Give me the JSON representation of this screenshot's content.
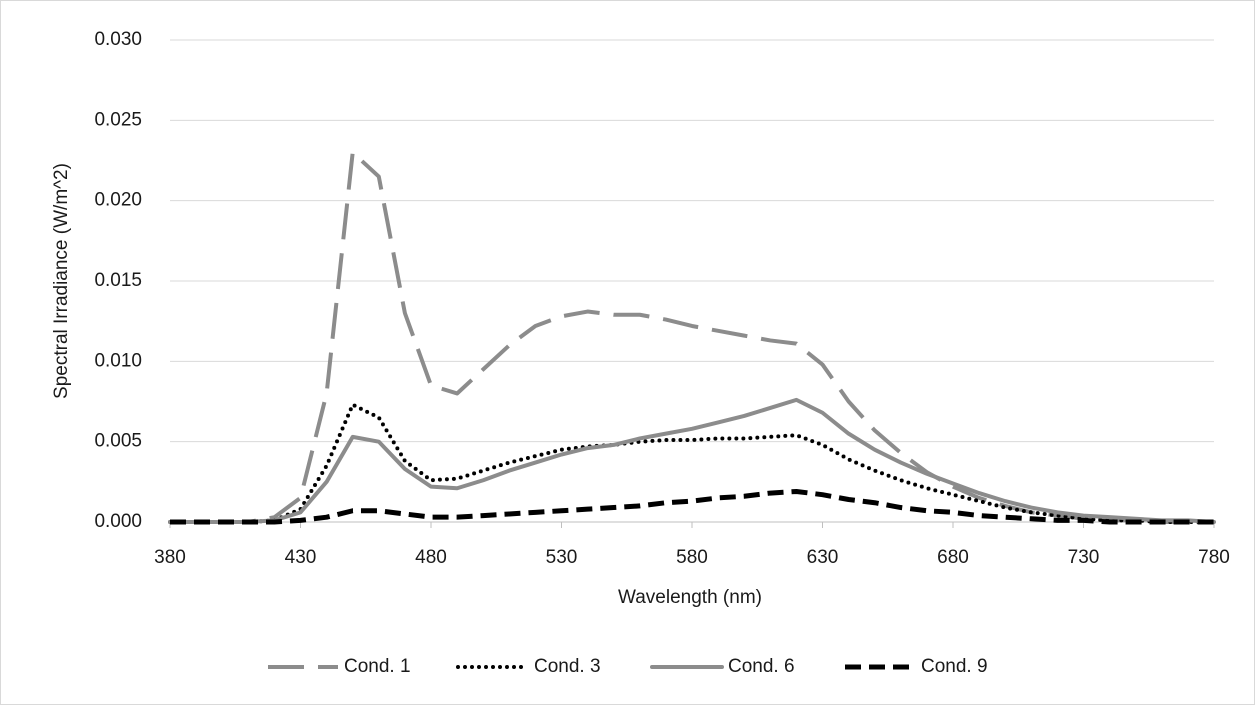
{
  "chart_data": {
    "type": "line",
    "x_label": "Wavelength (nm)",
    "y_label": "Spectral Irradiance (W/m^2)",
    "x": [
      380,
      390,
      400,
      410,
      420,
      430,
      440,
      450,
      460,
      470,
      480,
      490,
      500,
      510,
      520,
      530,
      540,
      550,
      560,
      570,
      580,
      590,
      600,
      610,
      620,
      630,
      640,
      650,
      660,
      670,
      680,
      690,
      700,
      710,
      720,
      730,
      740,
      750,
      760,
      770,
      780
    ],
    "series": [
      {
        "name": "Cond. 1",
        "color": "#8c8c8c",
        "style": "long-dash",
        "values": [
          0,
          0,
          0,
          0,
          0.0003,
          0.0015,
          0.008,
          0.023,
          0.0215,
          0.013,
          0.0085,
          0.008,
          0.0095,
          0.011,
          0.0122,
          0.0128,
          0.0131,
          0.0129,
          0.0129,
          0.0126,
          0.0122,
          0.0119,
          0.0116,
          0.0113,
          0.0111,
          0.0098,
          0.0075,
          0.0057,
          0.0043,
          0.0031,
          0.0022,
          0.0015,
          0.001,
          0.0006,
          0.0004,
          0.0002,
          0.0001,
          0.0001,
          0,
          0,
          0
        ]
      },
      {
        "name": "Cond. 3",
        "color": "#000000",
        "style": "dotted",
        "values": [
          0,
          0,
          0,
          0,
          0.0001,
          0.0008,
          0.0035,
          0.0073,
          0.0065,
          0.0038,
          0.0026,
          0.0027,
          0.0032,
          0.0037,
          0.0041,
          0.0045,
          0.0047,
          0.0048,
          0.005,
          0.0051,
          0.0051,
          0.0052,
          0.0052,
          0.0053,
          0.0054,
          0.0048,
          0.0039,
          0.0032,
          0.0026,
          0.0021,
          0.0017,
          0.0013,
          0.0009,
          0.0006,
          0.0004,
          0.0002,
          0.0001,
          0.0001,
          0,
          0,
          0
        ]
      },
      {
        "name": "Cond. 6",
        "color": "#8c8c8c",
        "style": "solid",
        "values": [
          0,
          0,
          0,
          0,
          0.0001,
          0.0006,
          0.0025,
          0.0053,
          0.005,
          0.0033,
          0.0022,
          0.0021,
          0.0026,
          0.0032,
          0.0037,
          0.0042,
          0.0046,
          0.0048,
          0.0052,
          0.0055,
          0.0058,
          0.0062,
          0.0066,
          0.0071,
          0.0076,
          0.0068,
          0.0055,
          0.0045,
          0.0037,
          0.003,
          0.0024,
          0.0018,
          0.0013,
          0.0009,
          0.0006,
          0.0004,
          0.0003,
          0.0002,
          0.0001,
          0.0001,
          0
        ]
      },
      {
        "name": "Cond. 9",
        "color": "#000000",
        "style": "dash",
        "values": [
          0,
          0,
          0,
          0,
          0,
          0.0001,
          0.0003,
          0.0007,
          0.0007,
          0.0005,
          0.0003,
          0.0003,
          0.0004,
          0.0005,
          0.0006,
          0.0007,
          0.0008,
          0.0009,
          0.001,
          0.0012,
          0.0013,
          0.0015,
          0.0016,
          0.0018,
          0.0019,
          0.0017,
          0.0014,
          0.0012,
          0.0009,
          0.0007,
          0.0006,
          0.0004,
          0.0003,
          0.0002,
          0.0001,
          0.0001,
          0,
          0,
          0,
          0,
          0
        ]
      }
    ],
    "xlim": [
      380,
      780
    ],
    "xticks": [
      380,
      430,
      480,
      530,
      580,
      630,
      680,
      730,
      780
    ],
    "ylim": [
      0,
      0.03
    ],
    "yticks": [
      {
        "value": 0,
        "label": "0.000"
      },
      {
        "value": 0.005,
        "label": "0.005"
      },
      {
        "value": 0.01,
        "label": "0.010"
      },
      {
        "value": 0.015,
        "label": "0.015"
      },
      {
        "value": 0.02,
        "label": "0.020"
      },
      {
        "value": 0.025,
        "label": "0.025"
      },
      {
        "value": 0.03,
        "label": "0.030"
      }
    ],
    "grid": true,
    "legend": "bottom"
  }
}
